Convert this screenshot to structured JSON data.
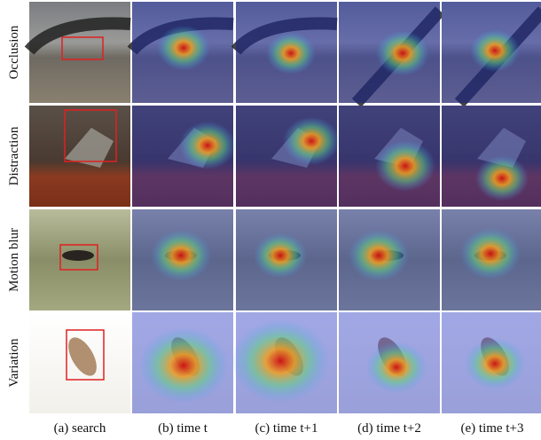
{
  "row_labels": [
    "Occlusion",
    "Distraction",
    "Motion blur",
    "Variation"
  ],
  "column_labels": [
    "(a) search",
    "(b) time t",
    "(c) time t+1",
    "(d) time t+2",
    "(e) time t+3"
  ]
}
